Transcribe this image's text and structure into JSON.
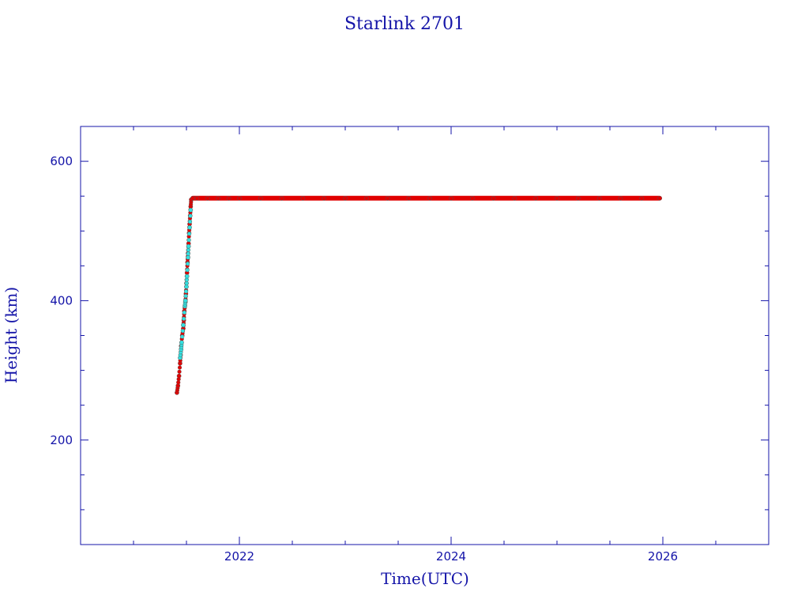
{
  "chart_data": {
    "type": "scatter",
    "title": "Starlink 2701",
    "xlabel": "Time(UTC)",
    "ylabel": "Height (km)",
    "xlim": [
      2020.5,
      2027.0
    ],
    "ylim": [
      50,
      650
    ],
    "x_ticks": [
      2022,
      2024,
      2026
    ],
    "x_tick_labels": [
      "2022",
      "2024",
      "2026"
    ],
    "y_ticks": [
      200,
      400,
      600
    ],
    "y_tick_labels": [
      "200",
      "400",
      "600"
    ],
    "colors": {
      "axis": "#1414a8",
      "primary_series": "#e00000",
      "secondary_series": "#33e0e0",
      "marker_outline": "#555555"
    },
    "series": [
      {
        "color": "#e00000",
        "points": [
          [
            2021.41,
            268
          ],
          [
            2021.42,
            278
          ],
          [
            2021.43,
            292
          ],
          [
            2021.44,
            310
          ],
          [
            2021.445,
            322
          ],
          [
            2021.45,
            335
          ],
          [
            2021.46,
            350
          ],
          [
            2021.47,
            360
          ],
          [
            2021.475,
            372
          ],
          [
            2021.48,
            385
          ],
          [
            2021.49,
            398
          ],
          [
            2021.495,
            410
          ],
          [
            2021.5,
            425
          ],
          [
            2021.505,
            440
          ],
          [
            2021.51,
            455
          ],
          [
            2021.515,
            468
          ],
          [
            2021.52,
            482
          ],
          [
            2021.525,
            497
          ],
          [
            2021.53,
            510
          ],
          [
            2021.535,
            522
          ],
          [
            2021.54,
            535
          ],
          [
            2021.545,
            545
          ],
          [
            2021.56,
            547
          ],
          [
            2021.6,
            547
          ],
          [
            2021.7,
            547
          ],
          [
            2021.8,
            547
          ],
          [
            2021.9,
            547
          ],
          [
            2022.0,
            547
          ],
          [
            2022.2,
            547
          ],
          [
            2022.4,
            547
          ],
          [
            2022.6,
            547
          ],
          [
            2022.8,
            547
          ],
          [
            2023.0,
            547
          ],
          [
            2023.2,
            547
          ],
          [
            2023.4,
            547
          ],
          [
            2023.6,
            547
          ],
          [
            2023.8,
            547
          ],
          [
            2024.0,
            547
          ],
          [
            2024.2,
            547
          ],
          [
            2024.4,
            547
          ],
          [
            2024.6,
            547
          ],
          [
            2024.8,
            547
          ],
          [
            2025.0,
            547
          ],
          [
            2025.2,
            547
          ],
          [
            2025.4,
            547
          ],
          [
            2025.6,
            547
          ],
          [
            2025.8,
            547
          ],
          [
            2025.97,
            547
          ]
        ]
      },
      {
        "color": "#33e0e0",
        "points": [
          [
            2021.44,
            318
          ],
          [
            2021.45,
            330
          ],
          [
            2021.455,
            340
          ],
          [
            2021.47,
            365
          ],
          [
            2021.485,
            392
          ],
          [
            2021.49,
            400
          ],
          [
            2021.5,
            420
          ],
          [
            2021.505,
            435
          ],
          [
            2021.515,
            462
          ],
          [
            2021.52,
            478
          ],
          [
            2021.53,
            505
          ],
          [
            2021.54,
            530
          ]
        ]
      }
    ]
  }
}
